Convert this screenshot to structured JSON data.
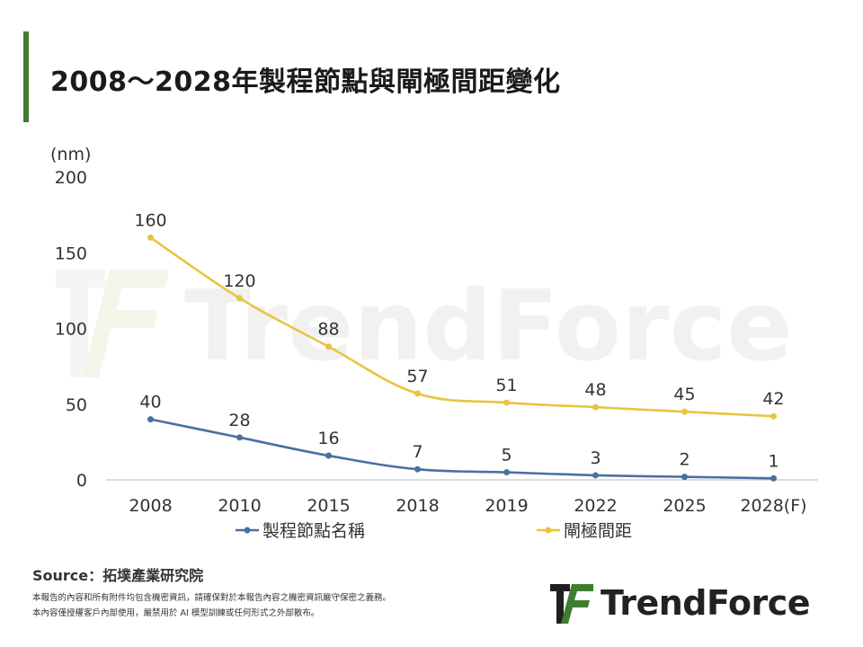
{
  "title": "2008～2028年製程節點與閘極間距變化",
  "source": "Source：拓墣產業研究院",
  "disclaimer_line1": "本報告的內容和所有附件均包含機密資訊，請確保對於本報告內容之機密資訊嚴守保密之義務。",
  "disclaimer_line2": "本內容僅授權客戶內部使用，嚴禁用於 AI 模型訓練或任何形式之外部散布。",
  "logo_text": "TrendForce",
  "watermark_text": "TrendForce",
  "colors": {
    "accent": "#3e7d2f",
    "series_node": "#4a70a0",
    "series_pitch": "#e8c440",
    "axis": "#555555",
    "watermark": "#eeeeee"
  },
  "chart_data": {
    "type": "line",
    "title": "2008～2028年製程節點與閘極間距變化",
    "ylabel": "(nm)",
    "xlabel": "",
    "categories": [
      "2008",
      "2010",
      "2015",
      "2018",
      "2019",
      "2022",
      "2025",
      "2028(F)"
    ],
    "yticks": [
      0,
      50,
      100,
      150,
      200
    ],
    "ylim": [
      0,
      200
    ],
    "grid": false,
    "legend": "bottom",
    "series": [
      {
        "name": "製程節點名稱",
        "values": [
          40,
          28,
          16,
          7,
          5,
          3,
          2,
          1
        ],
        "color": "#4a70a0"
      },
      {
        "name": "閘極間距",
        "values": [
          160,
          120,
          88,
          57,
          51,
          48,
          45,
          42
        ],
        "color": "#e8c440"
      }
    ]
  }
}
